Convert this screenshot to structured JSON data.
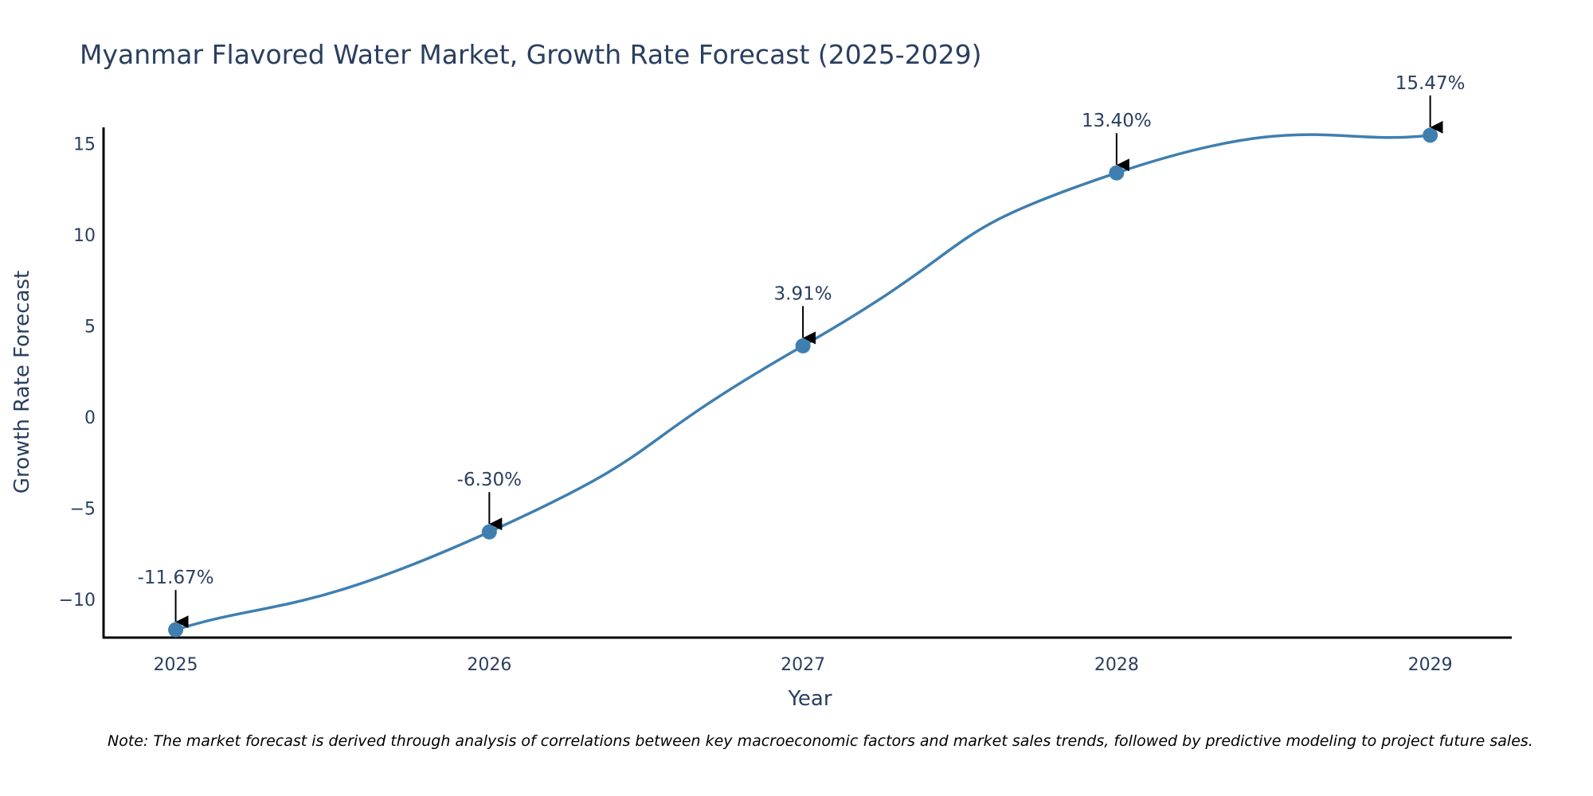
{
  "colors": {
    "line": "#3f7fb0",
    "marker": "#3f7fb0",
    "text": "#2a3f5f",
    "axis": "#000000",
    "arrow": "#000000"
  },
  "note": "Note: The market forecast is derived through analysis of correlations between key macroeconomic factors and market sales trends, followed by predictive modeling to project future sales.",
  "chart_data": {
    "type": "line",
    "title": "Myanmar Flavored Water Market, Growth Rate Forecast (2025-2029)",
    "xlabel": "Year",
    "ylabel": "Growth Rate Forecast",
    "categories": [
      "2025",
      "2026",
      "2027",
      "2028",
      "2029"
    ],
    "x": [
      2025,
      2026,
      2027,
      2028,
      2029
    ],
    "values": [
      -11.67,
      -6.3,
      3.91,
      13.4,
      15.47
    ],
    "annotations": [
      "-11.67%",
      "-6.30%",
      "3.91%",
      "13.40%",
      "15.47%"
    ],
    "xlim": [
      2024.77,
      2029.26
    ],
    "ylim": [
      -12.1,
      15.9
    ],
    "yticks": [
      -10,
      -5,
      0,
      5,
      10,
      15
    ],
    "ytick_labels": [
      "−10",
      "−5",
      "0",
      "5",
      "10",
      "15"
    ],
    "grid": false,
    "line_shape": "spline"
  }
}
